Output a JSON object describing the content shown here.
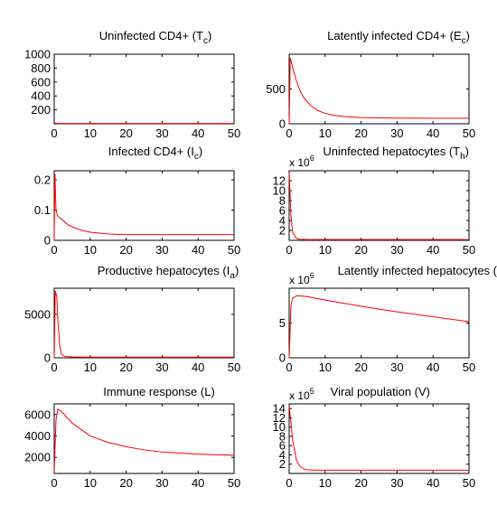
{
  "line_color": "#ff0000",
  "chart_data": [
    {
      "type": "line",
      "title": "Uninfected CD4+ (T",
      "title_sub": "c",
      "title_tail": ")",
      "xlim": [
        0,
        50
      ],
      "ylim": [
        0,
        1000
      ],
      "xticks": [
        0,
        10,
        20,
        30,
        40,
        50
      ],
      "yticks": [
        200,
        400,
        600,
        800,
        1000
      ],
      "x": [
        0,
        1,
        2,
        5,
        10,
        20,
        30,
        40,
        50
      ],
      "y": [
        10,
        6,
        5,
        5,
        5,
        5,
        5,
        5,
        5
      ]
    },
    {
      "type": "line",
      "title": "Latently infected CD4+ (E",
      "title_sub": "c",
      "title_tail": ")",
      "xlim": [
        0,
        50
      ],
      "ylim": [
        0,
        1000
      ],
      "xticks": [
        0,
        10,
        20,
        30,
        40,
        50
      ],
      "yticks": [
        0,
        500
      ],
      "x": [
        0,
        0.3,
        1,
        2,
        3,
        4,
        6,
        8,
        10,
        12,
        15,
        20,
        25,
        30,
        40,
        50
      ],
      "y": [
        0,
        950,
        800,
        620,
        480,
        380,
        260,
        190,
        150,
        125,
        105,
        90,
        84,
        82,
        80,
        80
      ]
    },
    {
      "type": "line",
      "title": "Infected CD4+ (I",
      "title_sub": "c",
      "title_tail": ")",
      "xlim": [
        0,
        50
      ],
      "ylim": [
        0,
        0.23
      ],
      "xticks": [
        0,
        10,
        20,
        30,
        40,
        50
      ],
      "yticks": [
        0,
        0.1,
        0.2
      ],
      "x": [
        0,
        0.2,
        0.5,
        1,
        2,
        3,
        4,
        6,
        8,
        10,
        15,
        20,
        30,
        40,
        50
      ],
      "y": [
        0,
        0.22,
        0.1,
        0.08,
        0.07,
        0.06,
        0.05,
        0.04,
        0.032,
        0.027,
        0.021,
        0.019,
        0.019,
        0.019,
        0.019
      ]
    },
    {
      "type": "line",
      "title": "Uninfected hepatocytes (T",
      "title_sub": "h",
      "title_tail": ")",
      "exponent_base": "x 10",
      "exponent": "6",
      "xlim": [
        0,
        50
      ],
      "ylim": [
        0,
        14
      ],
      "xticks": [
        0,
        10,
        20,
        30,
        40,
        50
      ],
      "yticks": [
        2,
        4,
        6,
        8,
        10,
        12
      ],
      "x": [
        0,
        0.5,
        1,
        2,
        3,
        5,
        10,
        20,
        30,
        40,
        50
      ],
      "y": [
        13.5,
        5,
        1.5,
        0.4,
        0.2,
        0.15,
        0.15,
        0.15,
        0.15,
        0.15,
        0.15
      ]
    },
    {
      "type": "line",
      "title": "Productive hepatocytes (I",
      "title_sub": "a",
      "title_tail": ")",
      "xlim": [
        0,
        50
      ],
      "ylim": [
        0,
        8000
      ],
      "xticks": [
        0,
        10,
        20,
        30,
        40,
        50
      ],
      "yticks": [
        0,
        5000
      ],
      "x": [
        0,
        0.3,
        0.7,
        1,
        1.5,
        2,
        3,
        5,
        10,
        20,
        30,
        40,
        50
      ],
      "y": [
        0,
        7700,
        7000,
        4500,
        1500,
        400,
        150,
        100,
        80,
        80,
        80,
        80,
        80
      ]
    },
    {
      "type": "line",
      "title": "Latently infected hepatocytes (",
      "title_sub": "",
      "title_tail": "",
      "exponent_base": "x 10",
      "exponent": "6",
      "xlim": [
        0,
        50
      ],
      "ylim": [
        0,
        10
      ],
      "xticks": [
        0,
        10,
        20,
        30,
        40,
        50
      ],
      "yticks": [
        0,
        5
      ],
      "x": [
        0,
        0.5,
        1,
        2,
        3,
        5,
        10,
        20,
        30,
        40,
        50
      ],
      "y": [
        0,
        7.5,
        8.6,
        8.9,
        8.9,
        8.8,
        8.3,
        7.4,
        6.6,
        5.9,
        5.2
      ]
    },
    {
      "type": "line",
      "title": "Immune response (L)",
      "title_sub": "",
      "title_tail": "",
      "xlim": [
        0,
        50
      ],
      "ylim": [
        500,
        7000
      ],
      "xticks": [
        0,
        10,
        20,
        30,
        40,
        50
      ],
      "yticks": [
        2000,
        4000,
        6000
      ],
      "x": [
        0,
        0.5,
        1,
        2,
        5,
        10,
        15,
        20,
        25,
        30,
        35,
        40,
        45,
        50
      ],
      "y": [
        700,
        5500,
        6500,
        6300,
        5200,
        4000,
        3400,
        3000,
        2700,
        2500,
        2400,
        2300,
        2250,
        2200
      ]
    },
    {
      "type": "line",
      "title": "Viral population (V)",
      "title_sub": "",
      "title_tail": "",
      "exponent_base": "x 10",
      "exponent": "5",
      "xlim": [
        0,
        50
      ],
      "ylim": [
        0,
        15
      ],
      "xticks": [
        0,
        10,
        20,
        30,
        40,
        50
      ],
      "yticks": [
        2,
        4,
        6,
        8,
        10,
        12,
        14
      ],
      "x": [
        0,
        0.5,
        1,
        2,
        3,
        4,
        5,
        7,
        10,
        20,
        30,
        40,
        50
      ],
      "y": [
        14.5,
        11,
        7,
        3,
        1.5,
        1.0,
        0.8,
        0.7,
        0.7,
        0.7,
        0.7,
        0.7,
        0.7
      ]
    }
  ]
}
